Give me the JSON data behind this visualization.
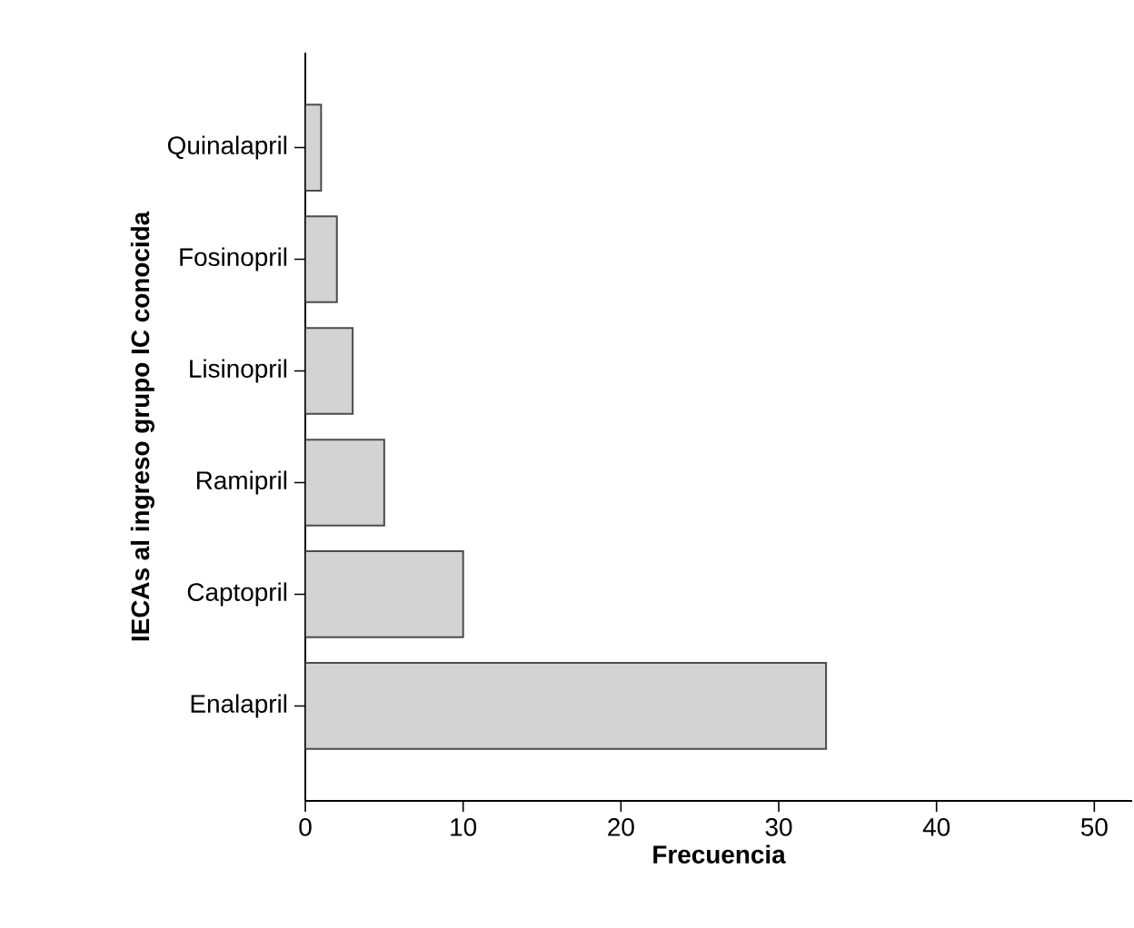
{
  "chart_data": {
    "type": "bar",
    "orientation": "horizontal",
    "xlabel": "Frecuencia",
    "ylabel": "IECAs al ingreso grupo IC conocida",
    "categories": [
      "Quinalapril",
      "Fosinopril",
      "Lisinopril",
      "Ramipril",
      "Captopril",
      "Enalapril"
    ],
    "values": [
      1,
      2,
      3,
      5,
      10,
      33
    ],
    "color": "#d3d3d3",
    "xlim": [
      0,
      52.4
    ],
    "xticks": [
      0,
      10,
      20,
      30,
      40,
      50
    ]
  }
}
